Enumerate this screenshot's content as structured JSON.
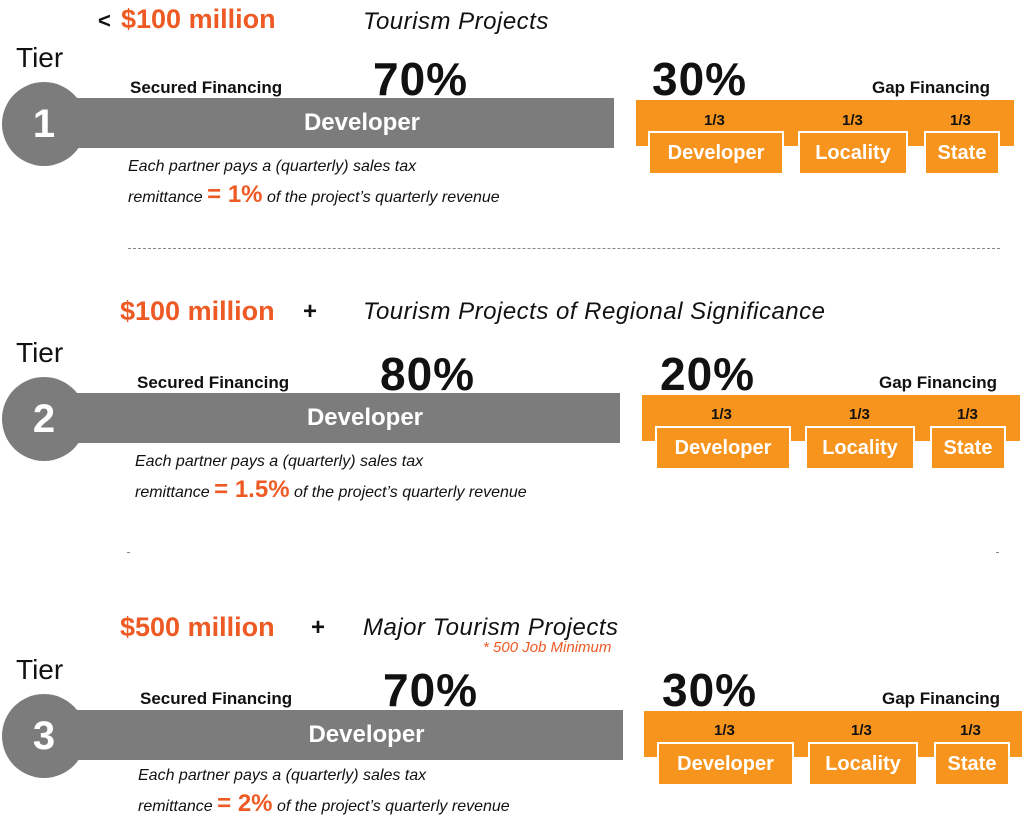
{
  "tiers": [
    {
      "prefix": "<",
      "amount": "$100 million",
      "plus": "",
      "category": "Tourism Projects",
      "note": "",
      "tier_word": "Tier",
      "tier_number": "1",
      "secured_label": "Secured Financing",
      "secured_pct": "70%",
      "bar_label": "Developer",
      "gap_pct": "30%",
      "gap_label": "Gap Financing",
      "partners": [
        {
          "fraction": "1/3",
          "name": "Developer"
        },
        {
          "fraction": "1/3",
          "name": "Locality"
        },
        {
          "fraction": "1/3",
          "name": "State"
        }
      ],
      "desc_line1": "Each partner pays a (quarterly) sales tax",
      "desc_pre": "remittance ",
      "desc_rate": "= 1%",
      "desc_post": " of the project’s quarterly revenue"
    },
    {
      "prefix": "",
      "amount": "$100 million",
      "plus": "+",
      "category": "Tourism Projects of Regional Significance",
      "note": "",
      "tier_word": "Tier",
      "tier_number": "2",
      "secured_label": "Secured Financing",
      "secured_pct": "80%",
      "bar_label": "Developer",
      "gap_pct": "20%",
      "gap_label": "Gap Financing",
      "partners": [
        {
          "fraction": "1/3",
          "name": "Developer"
        },
        {
          "fraction": "1/3",
          "name": "Locality"
        },
        {
          "fraction": "1/3",
          "name": "State"
        }
      ],
      "desc_line1": "Each partner pays a (quarterly) sales tax",
      "desc_pre": "remittance ",
      "desc_rate": "= 1.5%",
      "desc_post": " of the project’s quarterly revenue"
    },
    {
      "prefix": "",
      "amount": "$500 million",
      "plus": "+",
      "category": "Major Tourism Projects",
      "note": "* 500 Job Minimum",
      "tier_word": "Tier",
      "tier_number": "3",
      "secured_label": "Secured Financing",
      "secured_pct": "70%",
      "bar_label": "Developer",
      "gap_pct": "30%",
      "gap_label": "Gap Financing",
      "partners": [
        {
          "fraction": "1/3",
          "name": "Developer"
        },
        {
          "fraction": "1/3",
          "name": "Locality"
        },
        {
          "fraction": "1/3",
          "name": "State"
        }
      ],
      "desc_line1": "Each partner pays a (quarterly) sales tax",
      "desc_pre": "remittance ",
      "desc_rate": "= 2%",
      "desc_post": " of the project’s quarterly revenue"
    }
  ],
  "colors": {
    "accent_orange": "#ee5a24",
    "box_orange": "#f7941d",
    "gray": "#7c7c7c"
  }
}
